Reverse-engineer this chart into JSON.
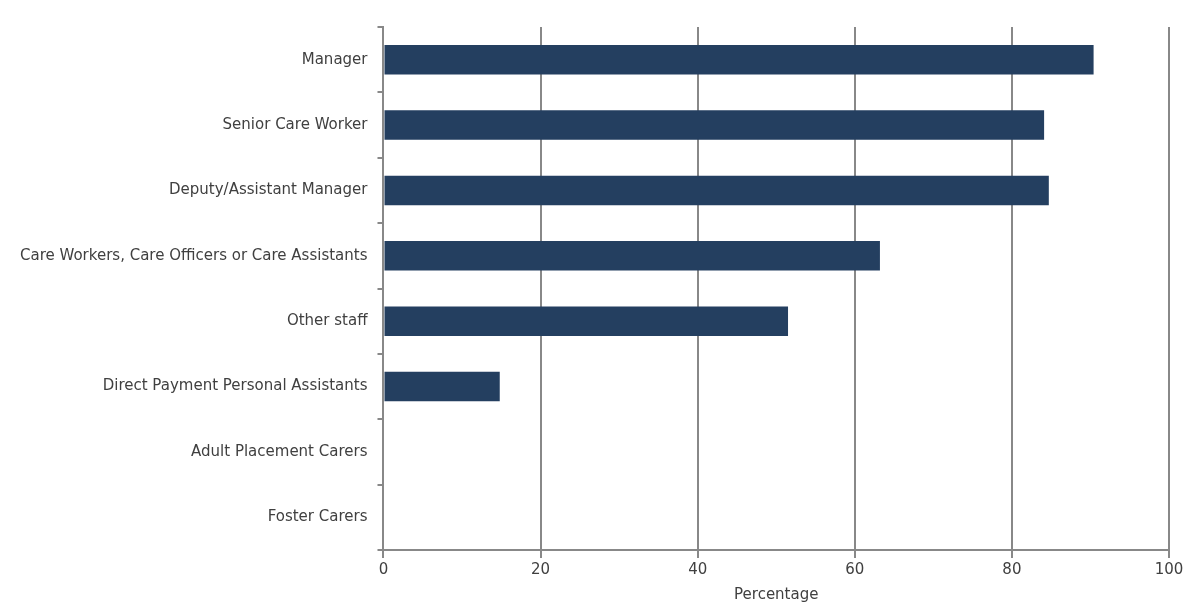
{
  "chart_data": {
    "type": "bar",
    "orientation": "horizontal",
    "xlabel": "Percentage",
    "categories": [
      "Manager",
      "Senior Care Worker",
      "Deputy/Assistant Manager",
      "Care Workers, Care Officers or Care Assistants",
      "Other staff",
      "Direct Payment Personal Assistants",
      "Adult Placement Carers",
      "Foster Carers"
    ],
    "values": [
      90.4,
      84.1,
      84.7,
      63.2,
      51.5,
      14.8,
      0,
      0
    ],
    "color": "#243f60",
    "xlim": [
      0,
      100
    ],
    "xticks": [
      0,
      20,
      40,
      60,
      80,
      100
    ],
    "grid": "x",
    "legend": false
  }
}
